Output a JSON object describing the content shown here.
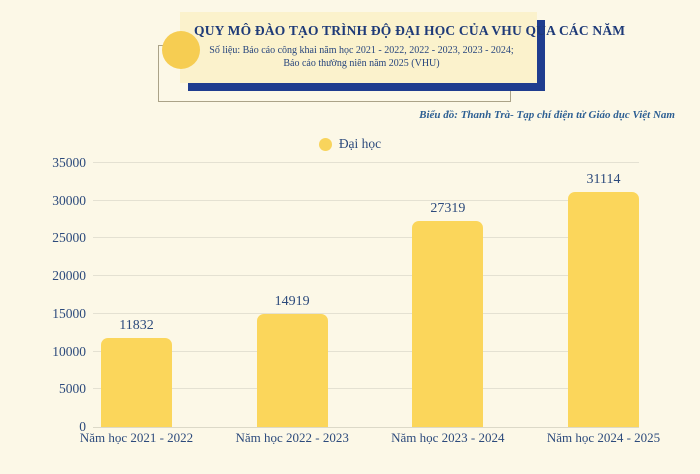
{
  "header": {
    "title": "QUY MÔ ĐÀO TẠO TRÌNH ĐỘ ĐẠI HỌC CỦA VHU QUA CÁC NĂM",
    "subtitle_line1": "Số liệu: Báo cáo công khai năm học 2021 - 2022, 2022 - 2023, 2023 - 2024;",
    "subtitle_line2": "Báo cáo thường niên năm 2025 (VHU)"
  },
  "credit": "Biểu đồ: Thanh Trà- Tạp chí điện tử Giáo dục Việt Nam",
  "legend": {
    "label": "Đại học"
  },
  "colors": {
    "background": "#fcf8e7",
    "title_box_bg": "#fbf2cc",
    "shadow_navy": "#1f3d8f",
    "accent_yellow": "#f6cd52",
    "bar_yellow": "#fbd65b",
    "text_navy": "#2c4a7c",
    "gridline": "#e4e1d2"
  },
  "chart_data": {
    "type": "bar",
    "title": "QUY MÔ ĐÀO TẠO TRÌNH ĐỘ ĐẠI HỌC CỦA VHU QUA CÁC NĂM",
    "series_name": "Đại học",
    "categories": [
      "Năm học 2021 - 2022",
      "Năm học 2022 - 2023",
      "Năm học 2023 - 2024",
      "Năm học 2024 - 2025"
    ],
    "values": [
      11832,
      14919,
      27319,
      31114
    ],
    "xlabel": "",
    "ylabel": "",
    "ylim": [
      0,
      35000
    ],
    "yticks": [
      0,
      5000,
      10000,
      15000,
      20000,
      25000,
      30000,
      35000
    ],
    "grid": true,
    "legend_position": "top-center",
    "bar_color": "#fbd65b",
    "data_labels": true
  }
}
